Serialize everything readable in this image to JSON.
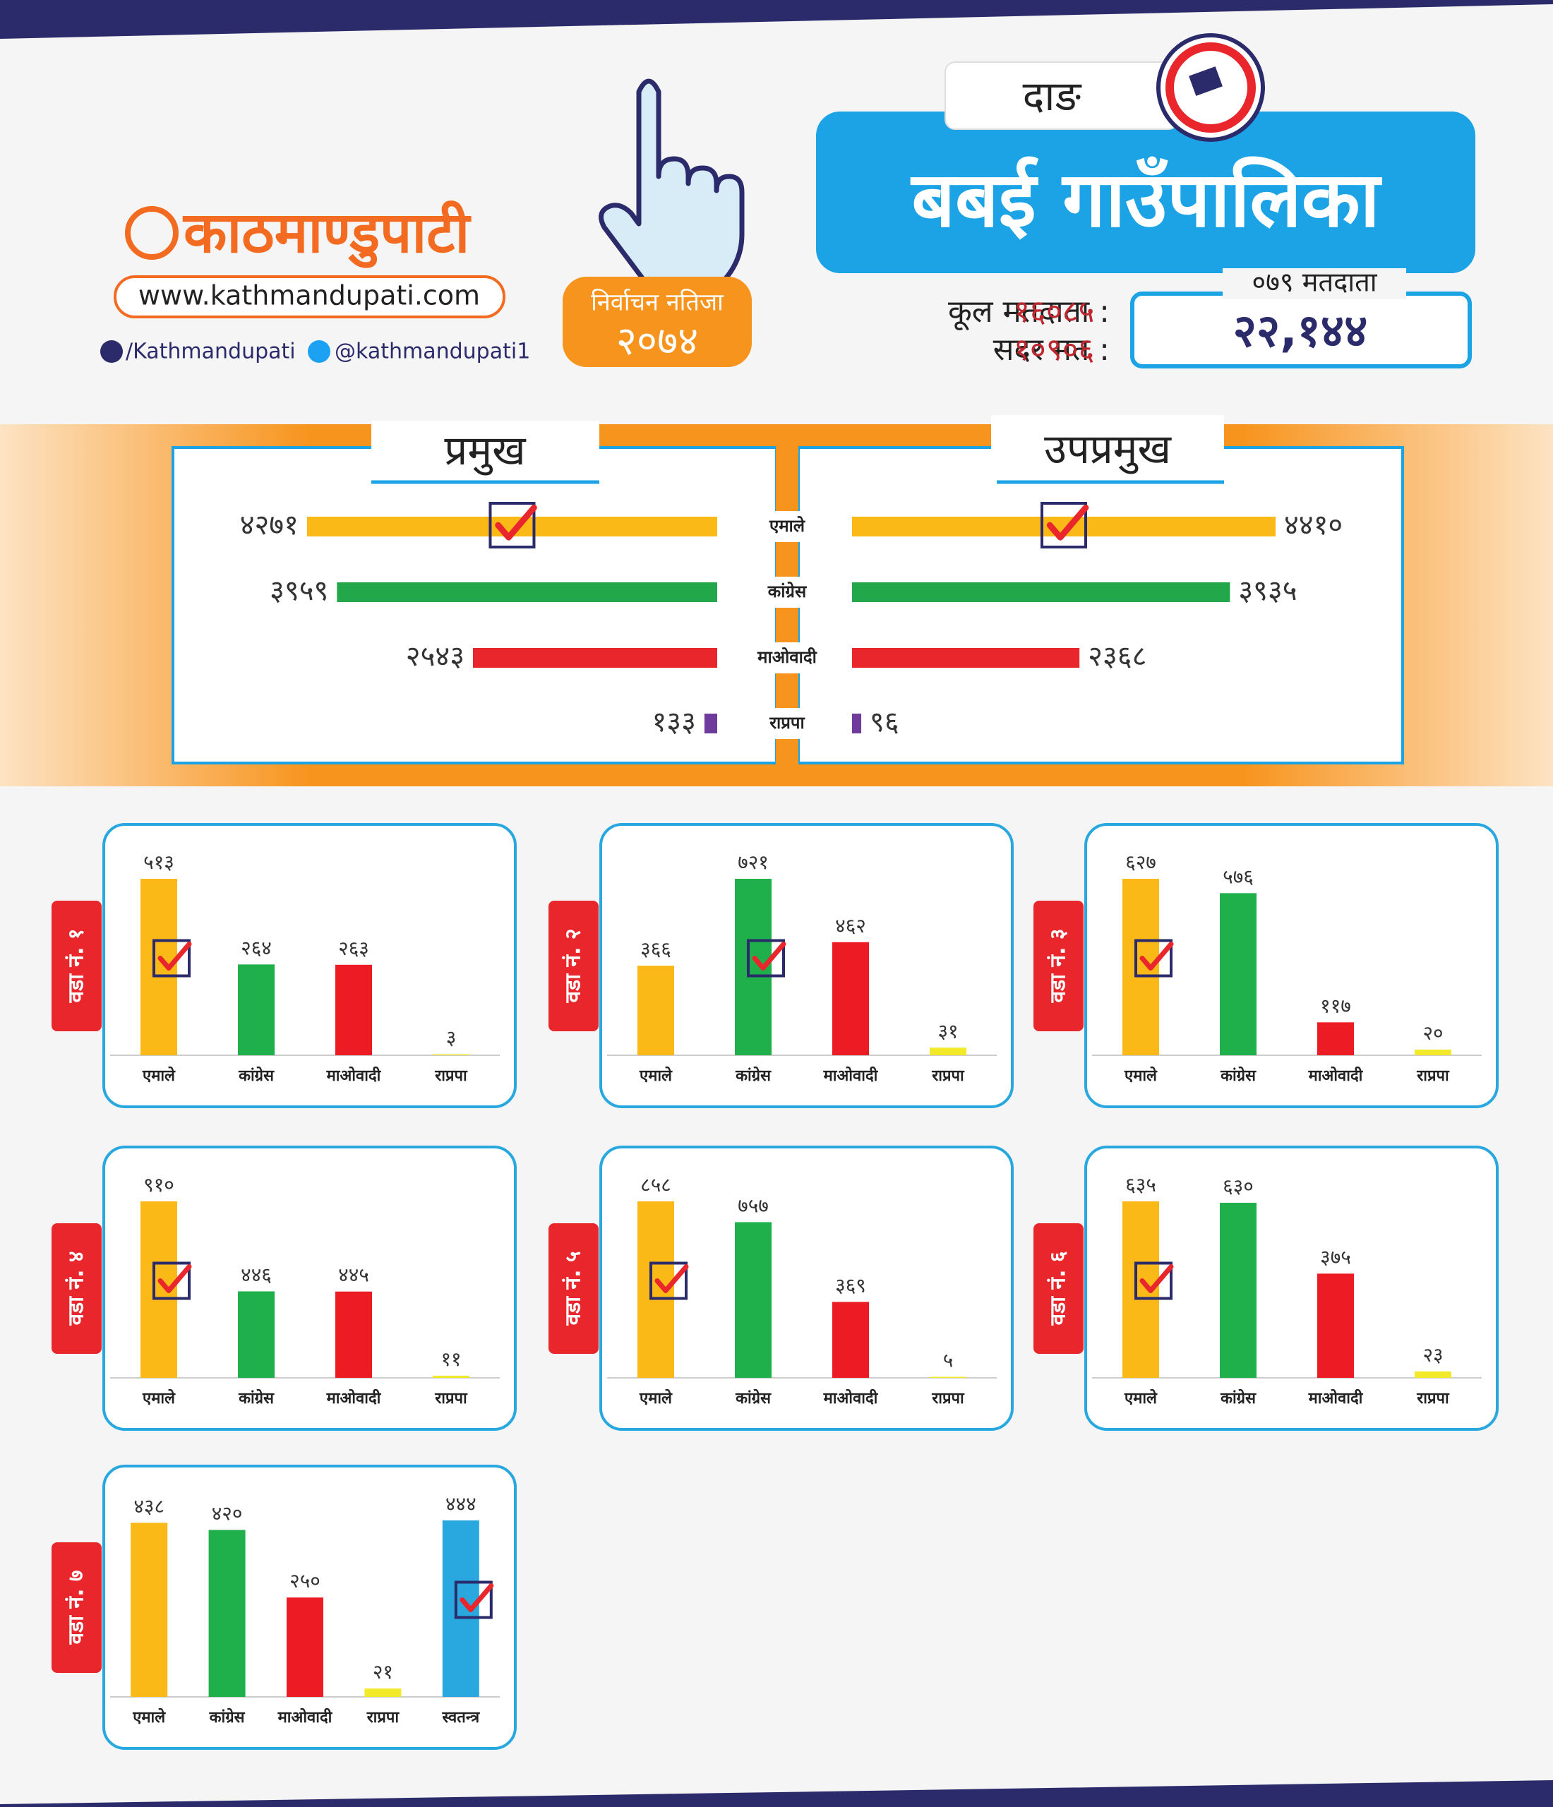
{
  "brand": {
    "logo": "काठमाण्डुपाटी",
    "website": "www.kathmandupati.com",
    "facebook": "/Kathmandupati",
    "twitter": "@kathmandupati1"
  },
  "header": {
    "district": "दाङ",
    "municipality": "बबई गाउँपालिका",
    "election": "निर्वाचन नतिजा",
    "year": "२०७४",
    "total_voters_label": "कूल मतदाता :",
    "total_voters": "१६०८५",
    "valid_votes_label": "सदर मत :",
    "valid_votes": "१०९०६",
    "voters_079_label": "०७९ मतदाता",
    "voters_079": "२२,१४४"
  },
  "chart_data": [
    {
      "type": "hbar",
      "categories": [
        "एमाले",
        "कांग्रेस",
        "माओवादी",
        "राप्रपा"
      ],
      "colors": [
        "#fbb917",
        "#22a84a",
        "#e8262b",
        "#6f3b9c"
      ],
      "series": [
        {
          "name": "प्रमुख",
          "values": [
            4271,
            3959,
            2543,
            133
          ],
          "value_labels": [
            "४२७१",
            "३९५९",
            "२५४३",
            "१३३"
          ],
          "winner": 0
        },
        {
          "name": "उपप्रमुख",
          "values": [
            4410,
            3935,
            2368,
            96
          ],
          "value_labels": [
            "४४१०",
            "३९३५",
            "२३६८",
            "९६"
          ],
          "winner": 0
        }
      ]
    },
    {
      "type": "bar",
      "title": "वडा नं. १",
      "categories": [
        "एमाले",
        "कांग्रेस",
        "माओवादी",
        "राप्रपा"
      ],
      "colors": [
        "#fbb917",
        "#1fb04b",
        "#ed1c24",
        "#f2e928"
      ],
      "values": [
        513,
        264,
        263,
        3
      ],
      "value_labels": [
        "५१३",
        "२६४",
        "२६३",
        "३"
      ],
      "winner": 0
    },
    {
      "type": "bar",
      "title": "वडा नं. २",
      "categories": [
        "एमाले",
        "कांग्रेस",
        "माओवादी",
        "राप्रपा"
      ],
      "colors": [
        "#fbb917",
        "#1fb04b",
        "#ed1c24",
        "#f2e928"
      ],
      "values": [
        366,
        721,
        462,
        31
      ],
      "value_labels": [
        "३६६",
        "७२१",
        "४६२",
        "३१"
      ],
      "winner": 1
    },
    {
      "type": "bar",
      "title": "वडा नं. ३",
      "categories": [
        "एमाले",
        "कांग्रेस",
        "माओवादी",
        "राप्रपा"
      ],
      "colors": [
        "#fbb917",
        "#1fb04b",
        "#ed1c24",
        "#f2e928"
      ],
      "values": [
        627,
        576,
        117,
        20
      ],
      "value_labels": [
        "६२७",
        "५७६",
        "११७",
        "२०"
      ],
      "winner": 0
    },
    {
      "type": "bar",
      "title": "वडा नं. ४",
      "categories": [
        "एमाले",
        "कांग्रेस",
        "माओवादी",
        "राप्रपा"
      ],
      "colors": [
        "#fbb917",
        "#1fb04b",
        "#ed1c24",
        "#f2e928"
      ],
      "values": [
        910,
        446,
        445,
        11
      ],
      "value_labels": [
        "९१०",
        "४४६",
        "४४५",
        "११"
      ],
      "winner": 0
    },
    {
      "type": "bar",
      "title": "वडा नं. ५",
      "categories": [
        "एमाले",
        "कांग्रेस",
        "माओवादी",
        "राप्रपा"
      ],
      "colors": [
        "#fbb917",
        "#1fb04b",
        "#ed1c24",
        "#f2e928"
      ],
      "values": [
        858,
        757,
        369,
        5
      ],
      "value_labels": [
        "८५८",
        "७५७",
        "३६९",
        "५"
      ],
      "winner": 0
    },
    {
      "type": "bar",
      "title": "वडा नं. ६",
      "categories": [
        "एमाले",
        "कांग्रेस",
        "माओवादी",
        "राप्रपा"
      ],
      "colors": [
        "#fbb917",
        "#1fb04b",
        "#ed1c24",
        "#f2e928"
      ],
      "values": [
        635,
        630,
        375,
        23
      ],
      "value_labels": [
        "६३५",
        "६३०",
        "३७५",
        "२३"
      ],
      "winner": 0
    },
    {
      "type": "bar",
      "title": "वडा नं. ७",
      "categories": [
        "एमाले",
        "कांग्रेस",
        "माओवादी",
        "राप्रपा",
        "स्वतन्त्र"
      ],
      "colors": [
        "#fbb917",
        "#1fb04b",
        "#ed1c24",
        "#f2e928",
        "#29a8e0"
      ],
      "values": [
        438,
        420,
        250,
        21,
        444
      ],
      "value_labels": [
        "४३८",
        "४२०",
        "२५०",
        "२१",
        "४४४"
      ],
      "winner": 4
    }
  ]
}
